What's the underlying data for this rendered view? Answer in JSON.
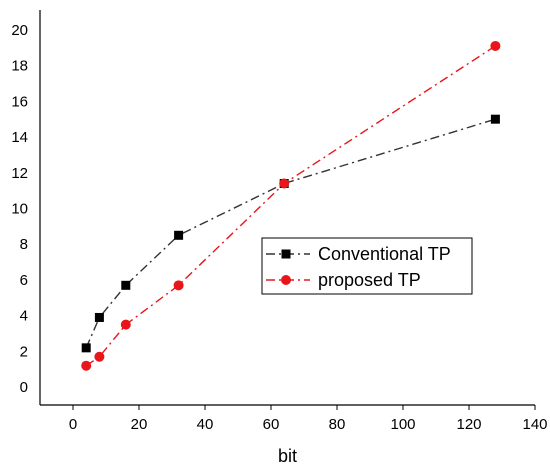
{
  "chart_data": {
    "type": "line",
    "title": "",
    "xlabel": "bit",
    "ylabel": "",
    "xlim": [
      -10,
      140
    ],
    "ylim": [
      -1,
      21
    ],
    "xticks": [
      0,
      20,
      40,
      60,
      80,
      100,
      120,
      140
    ],
    "yticks": [
      0,
      2,
      4,
      6,
      8,
      10,
      12,
      14,
      16,
      18,
      20
    ],
    "grid": false,
    "legend_position": "right-middle",
    "series": [
      {
        "name": "Conventional TP",
        "color": "#333333",
        "marker": "square",
        "line_style": "dash-dot",
        "x": [
          4,
          8,
          16,
          32,
          64,
          128
        ],
        "y": [
          2.2,
          3.9,
          5.7,
          8.5,
          11.4,
          15.0
        ]
      },
      {
        "name": "proposed TP",
        "color": "#e8161b",
        "marker": "circle",
        "line_style": "dash-dot",
        "x": [
          4,
          8,
          16,
          32,
          64,
          128
        ],
        "y": [
          1.2,
          1.7,
          3.5,
          5.7,
          11.4,
          19.1
        ]
      }
    ]
  }
}
